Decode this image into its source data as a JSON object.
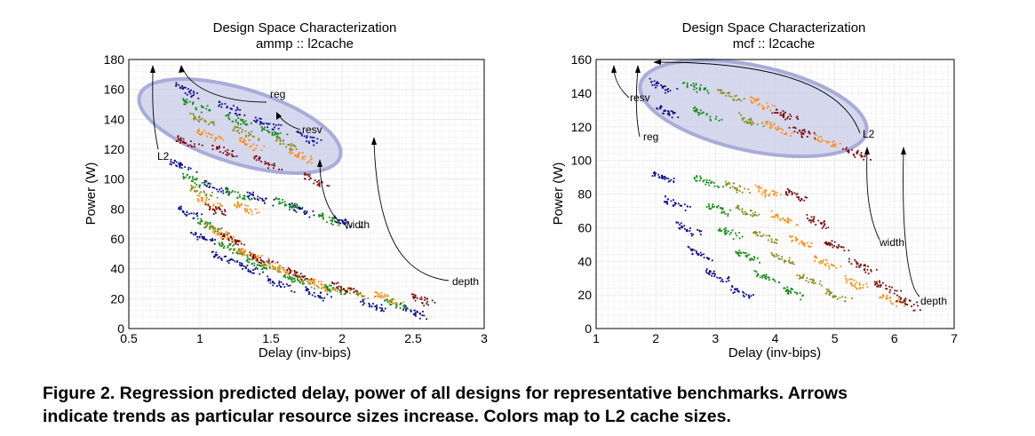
{
  "caption": {
    "line1": "Figure 2. Regression predicted delay, power of all designs for representative benchmarks.  Arrows",
    "line2": "indicate trends as particular resource sizes increase. Colors map to L2 cache sizes."
  },
  "colors": {
    "l2_series": [
      "#0a0a8c",
      "#118a11",
      "#8a8c1a",
      "#ff8c10",
      "#7a0a0a"
    ],
    "ellipse_fill": "#c8cbe8",
    "ellipse_stroke": "#a8acd8",
    "grid": "#cfcfcf"
  },
  "chart_data": [
    {
      "type": "scatter",
      "title": "Design Space Characterization",
      "subtitle": "ammp :: l2cache",
      "xlabel": "Delay (inv-bips)",
      "ylabel": "Power (W)",
      "xlim": [
        0.5,
        3
      ],
      "ylim": [
        0,
        180
      ],
      "xticks": [
        "0.5",
        "1",
        "1.5",
        "2",
        "2.5",
        "3"
      ],
      "xtick_values": [
        0.5,
        1,
        1.5,
        2,
        2.5,
        3
      ],
      "yticks": [
        "0",
        "20",
        "40",
        "60",
        "80",
        "100",
        "120",
        "140",
        "160",
        "180"
      ],
      "ytick_values": [
        0,
        20,
        40,
        60,
        80,
        100,
        120,
        140,
        160,
        180
      ],
      "grid": true,
      "series": [
        {
          "clusters": [
            [
              0.85,
              110
            ],
            [
              0.92,
              78
            ],
            [
              1.0,
              62
            ],
            [
              1.15,
              48
            ],
            [
              1.35,
              40
            ],
            [
              1.55,
              30
            ],
            [
              1.8,
              24
            ],
            [
              2.2,
              16
            ],
            [
              2.5,
              12
            ],
            [
              0.9,
              160
            ],
            [
              1.2,
              148
            ],
            [
              1.45,
              138
            ],
            [
              1.75,
              128
            ],
            [
              1.1,
              95
            ],
            [
              1.4,
              88
            ],
            [
              1.7,
              80
            ],
            [
              2.0,
              72
            ]
          ]
        },
        {
          "clusters": [
            [
              0.95,
              100
            ],
            [
              1.05,
              70
            ],
            [
              1.2,
              55
            ],
            [
              1.4,
              44
            ],
            [
              1.65,
              34
            ],
            [
              1.95,
              26
            ],
            [
              2.35,
              18
            ],
            [
              0.95,
              150
            ],
            [
              1.25,
              140
            ],
            [
              1.5,
              132
            ],
            [
              1.25,
              90
            ],
            [
              1.6,
              84
            ],
            [
              1.9,
              74
            ]
          ]
        },
        {
          "clusters": [
            [
              1.0,
              92
            ],
            [
              1.1,
              67
            ],
            [
              1.28,
              52
            ],
            [
              1.5,
              42
            ],
            [
              1.75,
              32
            ],
            [
              2.1,
              24
            ],
            [
              1.0,
              140
            ],
            [
              1.3,
              132
            ],
            [
              1.6,
              124
            ]
          ]
        },
        {
          "clusters": [
            [
              1.05,
              85
            ],
            [
              1.15,
              64
            ],
            [
              1.35,
              50
            ],
            [
              1.58,
              40
            ],
            [
              1.85,
              30
            ],
            [
              2.3,
              22
            ],
            [
              1.3,
              82
            ],
            [
              1.05,
              130
            ],
            [
              1.35,
              124
            ],
            [
              1.7,
              116
            ]
          ]
        },
        {
          "clusters": [
            [
              1.1,
              80
            ],
            [
              1.22,
              60
            ],
            [
              1.42,
              47
            ],
            [
              1.68,
              37
            ],
            [
              2.0,
              28
            ],
            [
              2.55,
              20
            ],
            [
              0.9,
              125
            ],
            [
              1.15,
              120
            ],
            [
              1.45,
              112
            ],
            [
              1.8,
              100
            ]
          ]
        }
      ],
      "annotations": [
        "reg",
        "resv",
        "L2",
        "width",
        "depth"
      ]
    },
    {
      "type": "scatter",
      "title": "Design Space Characterization",
      "subtitle": "mcf :: l2cache",
      "xlabel": "Delay (inv-bips)",
      "ylabel": "Power (W)",
      "xlim": [
        1,
        7
      ],
      "ylim": [
        0,
        160
      ],
      "xticks": [
        "1",
        "2",
        "3",
        "4",
        "5",
        "6",
        "7"
      ],
      "xtick_values": [
        1,
        2,
        3,
        4,
        5,
        6,
        7
      ],
      "yticks": [
        "0",
        "20",
        "40",
        "60",
        "80",
        "100",
        "120",
        "140",
        "160"
      ],
      "ytick_values": [
        0,
        20,
        40,
        60,
        80,
        100,
        120,
        140,
        160
      ],
      "grid": true,
      "series": [
        {
          "clusters": [
            [
              2.1,
              90
            ],
            [
              2.3,
              75
            ],
            [
              2.5,
              60
            ],
            [
              2.7,
              45
            ],
            [
              3.0,
              32
            ],
            [
              3.4,
              22
            ],
            [
              2.05,
              145
            ],
            [
              2.15,
              130
            ]
          ]
        },
        {
          "clusters": [
            [
              2.8,
              88
            ],
            [
              3.0,
              72
            ],
            [
              3.2,
              58
            ],
            [
              3.5,
              44
            ],
            [
              3.8,
              32
            ],
            [
              4.3,
              22
            ],
            [
              2.6,
              145
            ],
            [
              2.8,
              128
            ]
          ]
        },
        {
          "clusters": [
            [
              3.3,
              85
            ],
            [
              3.5,
              70
            ],
            [
              3.8,
              55
            ],
            [
              4.1,
              42
            ],
            [
              4.5,
              30
            ],
            [
              5.0,
              20
            ],
            [
              3.2,
              140
            ],
            [
              3.5,
              125
            ]
          ]
        },
        {
          "clusters": [
            [
              3.8,
              82
            ],
            [
              4.1,
              66
            ],
            [
              4.4,
              52
            ],
            [
              4.8,
              40
            ],
            [
              5.3,
              28
            ],
            [
              5.9,
              18
            ],
            [
              3.7,
              135
            ],
            [
              4.0,
              120
            ],
            [
              4.8,
              112
            ]
          ]
        },
        {
          "clusters": [
            [
              4.3,
              80
            ],
            [
              4.7,
              64
            ],
            [
              5.0,
              50
            ],
            [
              5.4,
              38
            ],
            [
              5.8,
              26
            ],
            [
              6.2,
              16
            ],
            [
              4.1,
              128
            ],
            [
              4.4,
              118
            ],
            [
              5.3,
              105
            ]
          ]
        }
      ],
      "annotations": [
        "resv",
        "reg",
        "L2",
        "width",
        "depth"
      ]
    }
  ]
}
